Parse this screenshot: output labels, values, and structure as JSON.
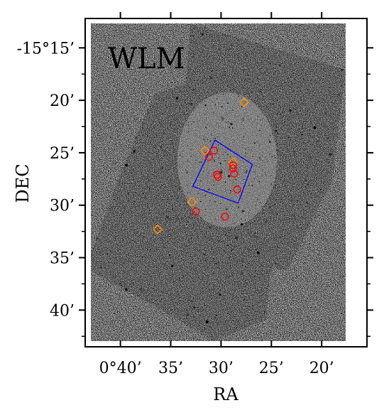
{
  "chart_data": {
    "type": "scatter",
    "title": "WLM",
    "xlabel": "RA",
    "ylabel": "DEC",
    "x_units": "arcmin offset from RA 0°00' (RA increases to the left)",
    "xlim": [
      43.5,
      15.5
    ],
    "ylim": [
      43.5,
      12.2
    ],
    "x_ticks": [
      {
        "value": 40,
        "label": "0°40’"
      },
      {
        "value": 35,
        "label": "35’"
      },
      {
        "value": 30,
        "label": "30’"
      },
      {
        "value": 25,
        "label": "25’"
      },
      {
        "value": 20,
        "label": "20’"
      }
    ],
    "y_ticks": [
      {
        "value": 15,
        "label": "-15°15’"
      },
      {
        "value": 20,
        "label": "20’"
      },
      {
        "value": 25,
        "label": "25’"
      },
      {
        "value": 30,
        "label": "30’"
      },
      {
        "value": 35,
        "label": "35’"
      },
      {
        "value": 40,
        "label": "40’"
      }
    ],
    "grid": false,
    "background": "grayscale sky image of WLM galaxy",
    "series": [
      {
        "marker": "diamond",
        "color": "#ff8c00",
        "points": [
          {
            "ra": 27.7,
            "dec": 20.2
          },
          {
            "ra": 31.6,
            "dec": 24.8
          },
          {
            "ra": 28.8,
            "dec": 25.9
          },
          {
            "ra": 32.9,
            "dec": 29.7
          },
          {
            "ra": 36.3,
            "dec": 32.3
          }
        ]
      },
      {
        "marker": "circle",
        "color": "#ff0000",
        "points": [
          {
            "ra": 30.7,
            "dec": 24.8
          },
          {
            "ra": 31.2,
            "dec": 25.4
          },
          {
            "ra": 30.4,
            "dec": 27.1
          },
          {
            "ra": 30.3,
            "dec": 27.3
          },
          {
            "ra": 28.8,
            "dec": 26.2
          },
          {
            "ra": 28.8,
            "dec": 26.5
          },
          {
            "ra": 28.7,
            "dec": 27.0
          },
          {
            "ra": 28.4,
            "dec": 28.5
          },
          {
            "ra": 32.5,
            "dec": 30.6
          },
          {
            "ra": 29.6,
            "dec": 31.1
          }
        ]
      }
    ],
    "outlines": [
      {
        "name": "footprint",
        "color": "#0000ff",
        "points": [
          {
            "ra": 30.6,
            "dec": 23.8
          },
          {
            "ra": 26.9,
            "dec": 26.1
          },
          {
            "ra": 28.3,
            "dec": 29.8
          },
          {
            "ra": 32.8,
            "dec": 28.2
          }
        ]
      }
    ]
  }
}
